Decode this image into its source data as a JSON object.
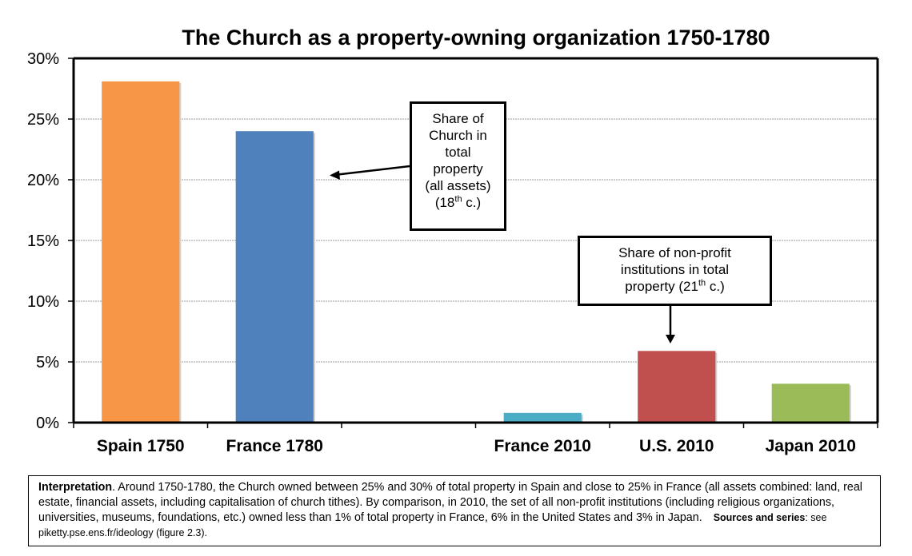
{
  "chart_data": {
    "type": "bar",
    "title": "The Church as a property-owning organization 1750-1780",
    "categories": [
      "Spain 1750",
      "France 1780",
      "",
      "France 2010",
      "U.S. 2010",
      "Japan 2010"
    ],
    "values": [
      28.1,
      24,
      null,
      0.8,
      5.9,
      3.2
    ],
    "colors": [
      "#f79646",
      "#4f81bd",
      null,
      "#4bacc6",
      "#c0504d",
      "#9bbb59"
    ],
    "ylim": [
      0,
      30
    ],
    "yticks": [
      0,
      5,
      10,
      15,
      20,
      25,
      30
    ],
    "ytick_labels": [
      "0%",
      "5%",
      "10%",
      "15%",
      "20%",
      "25%",
      "30%"
    ],
    "grid": true,
    "xlabel": "",
    "ylabel": ""
  },
  "annotations": {
    "church": {
      "line1": "Share of",
      "line2": "Church in",
      "line3": "total",
      "line4": "property",
      "line5": "(all assets)",
      "line6_pre": "(18",
      "line6_sup": "th",
      "line6_post": " c.)"
    },
    "nonprofit": {
      "line1": "Share of non-profit",
      "line2": "institutions in total",
      "line3_pre": "property (21",
      "line3_sup": "th",
      "line3_post": " c.)"
    }
  },
  "interpretation": {
    "label": "Interpretation",
    "text": ". Around 1750-1780, the Church owned between 25% and 30% of total property in Spain and close to 25% in France (all assets combined: land, real estate, financial assets, including capitalisation of church tithes). By comparison, in 2010, the set of all non-profit institutions (including religious organizations, universities, museums, foundations, etc.) owned less than 1% of total property in France, 6% in the United States and 3% in Japan.",
    "sources_label": "Sources and series",
    "sources_text": ": see piketty.pse.ens.fr/ideology (figure 2.3)."
  }
}
